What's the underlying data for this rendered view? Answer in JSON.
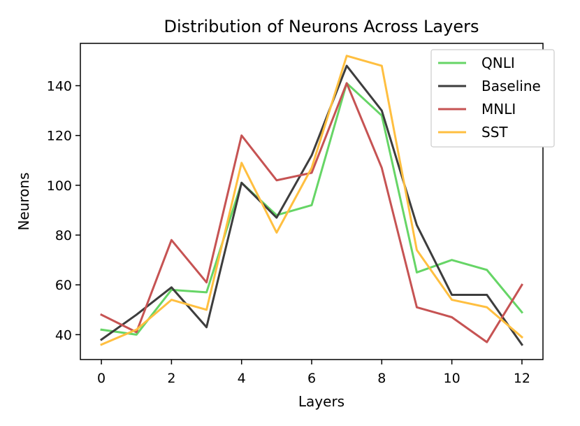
{
  "chart_data": {
    "type": "line",
    "title": "Distribution of Neurons Across Layers",
    "xlabel": "Layers",
    "ylabel": "Neurons",
    "x": [
      0,
      1,
      2,
      3,
      4,
      5,
      6,
      7,
      8,
      9,
      10,
      11,
      12
    ],
    "xlim": [
      -0.6,
      12.6
    ],
    "ylim": [
      30,
      157
    ],
    "xticks": [
      0,
      2,
      4,
      6,
      8,
      10,
      12
    ],
    "yticks": [
      40,
      60,
      80,
      100,
      120,
      140
    ],
    "grid": false,
    "legend_position": "top-right",
    "series": [
      {
        "name": "QNLI",
        "color": "#66d566",
        "values": [
          42,
          40,
          58,
          57,
          101,
          88,
          92,
          141,
          128,
          65,
          70,
          66,
          49
        ]
      },
      {
        "name": "Baseline",
        "color": "#3d3d3d",
        "values": [
          38,
          48,
          59,
          43,
          101,
          87,
          112,
          148,
          130,
          84,
          56,
          56,
          36
        ]
      },
      {
        "name": "MNLI",
        "color": "#c65353",
        "values": [
          48,
          41,
          78,
          61,
          120,
          102,
          105,
          141,
          107,
          51,
          47,
          37,
          60
        ]
      },
      {
        "name": "SST",
        "color": "#ffbf40",
        "values": [
          36,
          42,
          54,
          50,
          109,
          81,
          107,
          152,
          148,
          74,
          54,
          51,
          39
        ]
      }
    ]
  }
}
